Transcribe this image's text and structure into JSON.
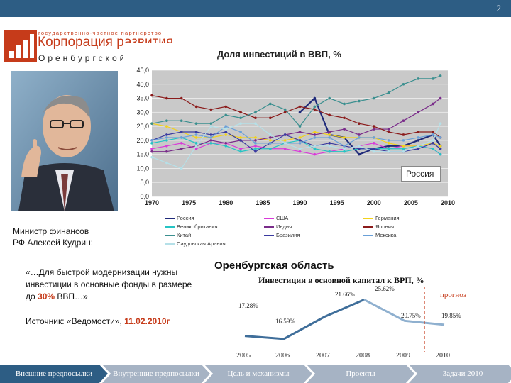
{
  "slide_number": "2",
  "logo": {
    "super": "государственно-частное партнерство",
    "main": "Корпорация развития",
    "region": "Оренбургской области"
  },
  "caption": {
    "line1": "Министр финансов",
    "line2": "РФ Алексей Кудрин:"
  },
  "quote": {
    "part1": "«…Для быстрой модернизации нужны инвестиции в основные фонды в размере до ",
    "highlight": "30%",
    "part2": " ВВП…»"
  },
  "source": {
    "label": "Источник: «Ведомости», ",
    "date": "11.02.2010г"
  },
  "colors": {
    "accent": "#c63b1a",
    "nav_active": "#2d5d84",
    "nav_inactive": "#a6b3c4"
  },
  "chart_data": [
    {
      "type": "line",
      "title": "Доля инвестиций в ВВП, %",
      "x": [
        1970,
        1972,
        1974,
        1976,
        1978,
        1980,
        1982,
        1984,
        1986,
        1988,
        1990,
        1992,
        1994,
        1996,
        1998,
        2000,
        2002,
        2004,
        2006,
        2008,
        2009
      ],
      "xticks": [
        "1970",
        "1975",
        "1980",
        "1985",
        "1990",
        "1995",
        "2000",
        "2005",
        "2010"
      ],
      "yticks": [
        "0,0",
        "5,0",
        "10,0",
        "15,0",
        "20,0",
        "25,0",
        "30,0",
        "35,0",
        "40,0",
        "45,0"
      ],
      "ylim": [
        0,
        45
      ],
      "grid": true,
      "annotation": "Россия",
      "series": [
        {
          "name": "Россия",
          "color": "#1f2a7a",
          "values": [
            null,
            null,
            null,
            null,
            null,
            null,
            null,
            null,
            null,
            null,
            30,
            35,
            22,
            21,
            15,
            17,
            18,
            18,
            20,
            22,
            18
          ]
        },
        {
          "name": "США",
          "color": "#d93ad9",
          "values": [
            17,
            18,
            19,
            17,
            19,
            19,
            17,
            18,
            17,
            17,
            16,
            15,
            16,
            17,
            18,
            19,
            17,
            18,
            18,
            17,
            15
          ]
        },
        {
          "name": "Германия",
          "color": "#f2d21b",
          "values": [
            26,
            25,
            23,
            21,
            21,
            22,
            21,
            21,
            20,
            20,
            21,
            23,
            22,
            21,
            21,
            21,
            19,
            18,
            18,
            19,
            18
          ]
        },
        {
          "name": "Великобритания",
          "color": "#25c4c4",
          "values": [
            19,
            20,
            21,
            19,
            19,
            18,
            16,
            17,
            17,
            19,
            20,
            17,
            16,
            16,
            17,
            17,
            17,
            17,
            18,
            17,
            15
          ]
        },
        {
          "name": "Индия",
          "color": "#7a2c8a",
          "values": [
            16,
            16,
            17,
            18,
            20,
            19,
            20,
            20,
            21,
            22,
            23,
            22,
            23,
            24,
            22,
            24,
            24,
            27,
            30,
            33,
            35
          ]
        },
        {
          "name": "Япония",
          "color": "#8b1b1b",
          "values": [
            36,
            35,
            35,
            32,
            31,
            32,
            30,
            28,
            28,
            30,
            32,
            31,
            29,
            28,
            26,
            25,
            23,
            22,
            23,
            23,
            21
          ]
        },
        {
          "name": "Китай",
          "color": "#3a8f8f",
          "values": [
            26,
            27,
            27,
            26,
            26,
            29,
            28,
            30,
            33,
            31,
            25,
            32,
            35,
            33,
            34,
            35,
            37,
            40,
            42,
            42,
            43
          ]
        },
        {
          "name": "Бразилия",
          "color": "#3a3aa0",
          "values": [
            20,
            22,
            23,
            23,
            22,
            23,
            20,
            16,
            19,
            22,
            20,
            18,
            19,
            18,
            17,
            17,
            16,
            16,
            17,
            19,
            17
          ]
        },
        {
          "name": "Мексика",
          "color": "#6aa0d8",
          "values": [
            20,
            21,
            21,
            22,
            21,
            25,
            23,
            19,
            19,
            19,
            19,
            21,
            21,
            18,
            21,
            21,
            20,
            20,
            21,
            22,
            21
          ]
        },
        {
          "name": "Саудовская Аравия",
          "color": "#b5e0e8",
          "values": [
            14,
            12,
            10,
            18,
            25,
            24,
            26,
            26,
            22,
            19,
            17,
            18,
            18,
            17,
            18,
            16,
            16,
            16,
            18,
            20,
            26
          ]
        }
      ]
    },
    {
      "type": "line",
      "title": "Оренбургская область",
      "subtitle": "Инвестиции в основной капитал к ВРП, %",
      "categories": [
        "2005",
        "2006",
        "2007",
        "2008",
        "2009",
        "2010"
      ],
      "values": [
        17.28,
        16.59,
        21.66,
        25.62,
        20.75,
        19.85
      ],
      "labels": [
        "17.28%",
        "16.59%",
        "21.66%",
        "25.62%",
        "20.75%",
        "19.85%"
      ],
      "annotation": "прогноз"
    }
  ],
  "nav": [
    {
      "label": "Внешние предпосылки",
      "active": true
    },
    {
      "label": "Внутренние предпосылки",
      "active": false
    },
    {
      "label": "Цель и механизмы",
      "active": false
    },
    {
      "label": "Проекты",
      "active": false
    },
    {
      "label": "Задачи 2010",
      "active": false
    }
  ]
}
